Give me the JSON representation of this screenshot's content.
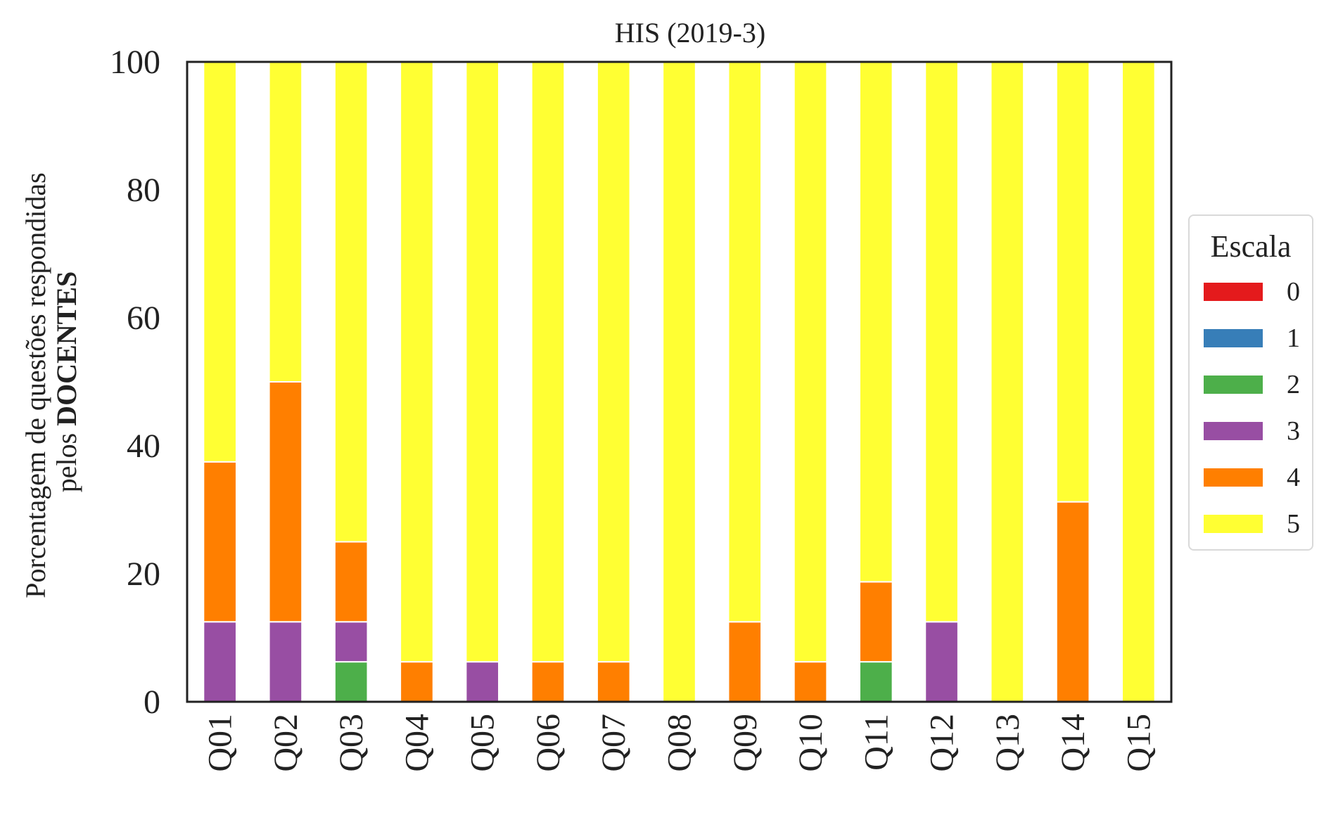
{
  "chart_data": {
    "type": "bar",
    "stacked": true,
    "title": "HIS (2019-3)",
    "ylabel_line1": "Porcentagem de questões respondidas",
    "ylabel_line2_prefix": "pelos ",
    "ylabel_line2_bold": "DOCENTES",
    "xlabel": "",
    "ylim": [
      0,
      100
    ],
    "yticks": [
      "0",
      "20",
      "40",
      "60",
      "80",
      "100"
    ],
    "grid": false,
    "legend_position": "center-right",
    "legend_title": "Escala",
    "categories": [
      "Q01",
      "Q02",
      "Q03",
      "Q04",
      "Q05",
      "Q06",
      "Q07",
      "Q08",
      "Q09",
      "Q10",
      "Q11",
      "Q12",
      "Q13",
      "Q14",
      "Q15"
    ],
    "series": [
      {
        "name": "0",
        "color": "#e41a1c",
        "values": [
          0,
          0,
          0,
          0,
          0,
          0,
          0,
          0,
          0,
          0,
          0,
          0,
          0,
          0,
          0
        ]
      },
      {
        "name": "1",
        "color": "#377eb8",
        "values": [
          0,
          0,
          0,
          0,
          0,
          0,
          0,
          0,
          0,
          0,
          0,
          0,
          0,
          0,
          0
        ]
      },
      {
        "name": "2",
        "color": "#4daf4a",
        "values": [
          0,
          0,
          6.25,
          0,
          0,
          0,
          0,
          0,
          0,
          0,
          6.25,
          0,
          0,
          0,
          0
        ]
      },
      {
        "name": "3",
        "color": "#984ea3",
        "values": [
          12.5,
          12.5,
          6.25,
          0,
          6.25,
          0,
          0,
          0,
          0,
          0,
          0,
          12.5,
          0,
          0,
          0
        ]
      },
      {
        "name": "4",
        "color": "#ff7f00",
        "values": [
          25,
          37.5,
          12.5,
          6.25,
          0,
          6.25,
          6.25,
          0,
          12.5,
          6.25,
          12.5,
          0,
          0,
          31.25,
          0
        ]
      },
      {
        "name": "5",
        "color": "#ffff33",
        "values": [
          62.5,
          50,
          75,
          93.75,
          93.75,
          93.75,
          93.75,
          100,
          87.5,
          93.75,
          81.25,
          87.5,
          100,
          68.75,
          100
        ]
      }
    ]
  }
}
